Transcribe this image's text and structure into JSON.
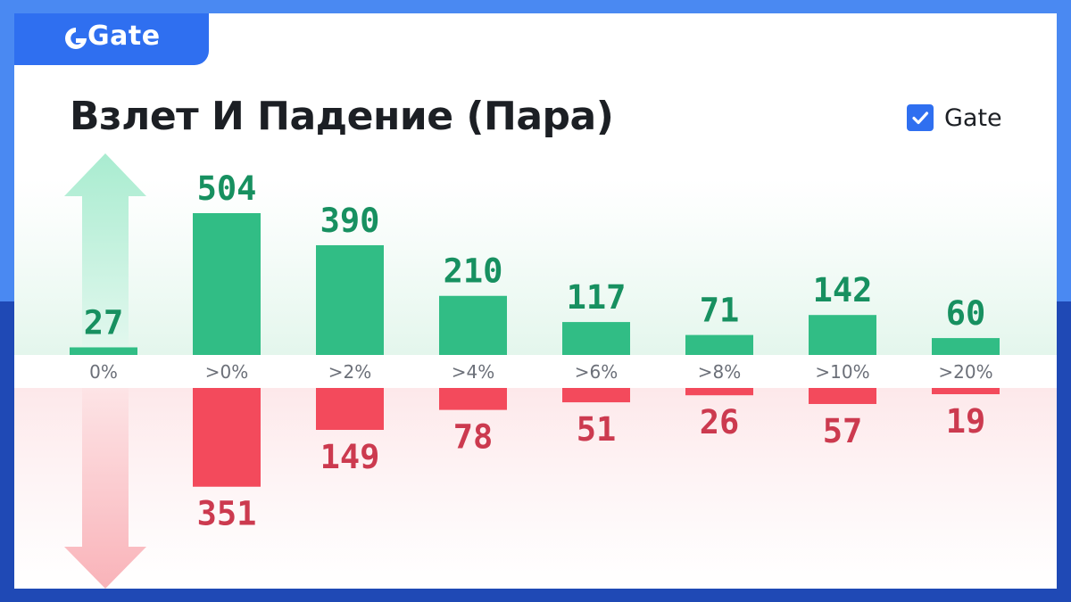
{
  "brand": {
    "name": "Gate"
  },
  "title": "Взлет И Падение (Пара)",
  "legend": {
    "label": "Gate",
    "checked": true
  },
  "colors": {
    "up": "#31bd85",
    "up_label": "#179060",
    "down": "#f34a5c",
    "down_label": "#cc3a4f",
    "brand": "#2f6ff0",
    "tick": "#6b6f78"
  },
  "chart_data": {
    "type": "bar",
    "categories": [
      "0%",
      ">0%",
      ">2%",
      ">4%",
      ">6%",
      ">8%",
      ">10%",
      ">20%"
    ],
    "series": [
      {
        "values": [
          27,
          504,
          390,
          210,
          117,
          71,
          142,
          60
        ]
      },
      {
        "values": [
          0,
          351,
          149,
          78,
          51,
          26,
          57,
          19
        ]
      }
    ],
    "legend_position": "top-right"
  }
}
